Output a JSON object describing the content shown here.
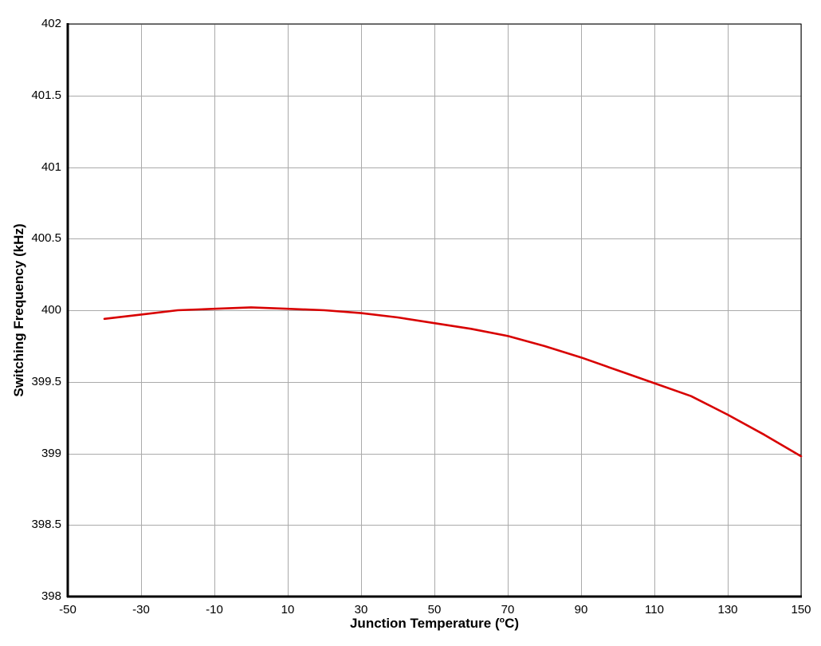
{
  "chart_data": {
    "type": "line",
    "title": "",
    "xlabel": "Junction Temperature (°C)",
    "xlabel_parts": {
      "prefix": "Junction Temperature (",
      "sup": "o",
      "suffix": "C)"
    },
    "ylabel": "Switching Frequency (kHz)",
    "xlim": [
      -50,
      150
    ],
    "ylim": [
      398,
      402
    ],
    "xticks": [
      "-50",
      "-30",
      "-10",
      "10",
      "30",
      "50",
      "70",
      "90",
      "110",
      "130",
      "150"
    ],
    "yticks": [
      "398",
      "398.5",
      "399",
      "399.5",
      "400",
      "400.5",
      "401",
      "401.5",
      "402"
    ],
    "grid": true,
    "legend": "none",
    "colors": {
      "line": "#d80000",
      "grid": "#aaaaaa",
      "axis": "#000000",
      "background": "#ffffff"
    },
    "series": [
      {
        "name": "Switching Frequency",
        "color": "#d80000",
        "x": [
          -40,
          -30,
          -20,
          -10,
          0,
          10,
          20,
          30,
          40,
          50,
          60,
          70,
          80,
          90,
          100,
          110,
          120,
          130,
          140,
          150
        ],
        "y": [
          399.94,
          399.97,
          400.0,
          400.01,
          400.02,
          400.01,
          400.0,
          399.98,
          399.95,
          399.91,
          399.87,
          399.82,
          399.75,
          399.67,
          399.58,
          399.49,
          399.4,
          399.27,
          399.13,
          398.98
        ]
      }
    ]
  }
}
